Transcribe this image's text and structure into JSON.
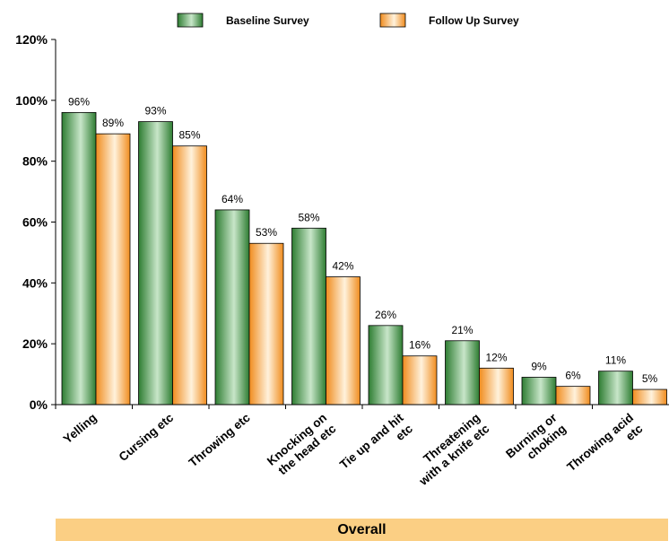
{
  "chart_data": {
    "type": "bar",
    "categories": [
      [
        "Yelling"
      ],
      [
        "Cursing etc"
      ],
      [
        "Throwing etc"
      ],
      [
        "Knocking on",
        "the head etc"
      ],
      [
        "Tie up and hit",
        "etc"
      ],
      [
        "Threatening",
        "with a knife etc"
      ],
      [
        "Burning or",
        "choking"
      ],
      [
        "Throwing acid",
        "etc"
      ]
    ],
    "series": [
      {
        "name": "Baseline Survey",
        "values": [
          96,
          93,
          64,
          58,
          26,
          21,
          9,
          11
        ],
        "labels": [
          "96%",
          "93%",
          "64%",
          "58%",
          "26%",
          "21%",
          "9%",
          "11%"
        ],
        "color_dark": "#2e7d32",
        "color_light": "#c8e6c9"
      },
      {
        "name": "Follow Up Survey",
        "values": [
          89,
          85,
          53,
          42,
          16,
          12,
          6,
          5
        ],
        "labels": [
          "89%",
          "85%",
          "53%",
          "42%",
          "16%",
          "12%",
          "6%",
          "5%"
        ],
        "color_dark": "#f08c1e",
        "color_light": "#fff2dc"
      }
    ],
    "y_ticks": [
      "0%",
      "20%",
      "40%",
      "60%",
      "80%",
      "100%",
      "120%"
    ],
    "y_tick_values": [
      0,
      20,
      40,
      60,
      80,
      100,
      120
    ],
    "ylim": [
      0,
      120
    ],
    "xlabel": "Overall",
    "legend": "top",
    "grid": false
  }
}
